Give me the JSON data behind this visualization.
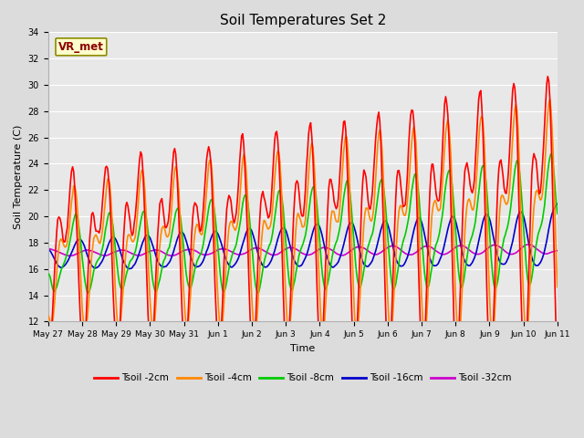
{
  "title": "Soil Temperatures Set 2",
  "xlabel": "Time",
  "ylabel": "Soil Temperature (C)",
  "ylim": [
    12,
    34
  ],
  "yticks": [
    12,
    14,
    16,
    18,
    20,
    22,
    24,
    26,
    28,
    30,
    32,
    34
  ],
  "background_color": "#dcdcdc",
  "plot_bg_color": "#e8e8e8",
  "annotation_text": "VR_met",
  "annotation_bg": "#ffffcc",
  "annotation_border": "#8b8b00",
  "series_colors": {
    "Tsoil -2cm": "#ff0000",
    "Tsoil -4cm": "#ff8800",
    "Tsoil -8cm": "#00cc00",
    "Tsoil -16cm": "#0000cc",
    "Tsoil -32cm": "#cc00cc"
  },
  "x_tick_labels": [
    "May 27",
    "May 28",
    "May 29",
    "May 30",
    "May 31",
    "Jun 1",
    "Jun 2",
    "Jun 3",
    "Jun 4",
    "Jun 5",
    "Jun 6",
    "Jun 7",
    "Jun 8",
    "Jun 9",
    "Jun 10",
    "Jun 11"
  ],
  "n_points": 480,
  "days": 15
}
